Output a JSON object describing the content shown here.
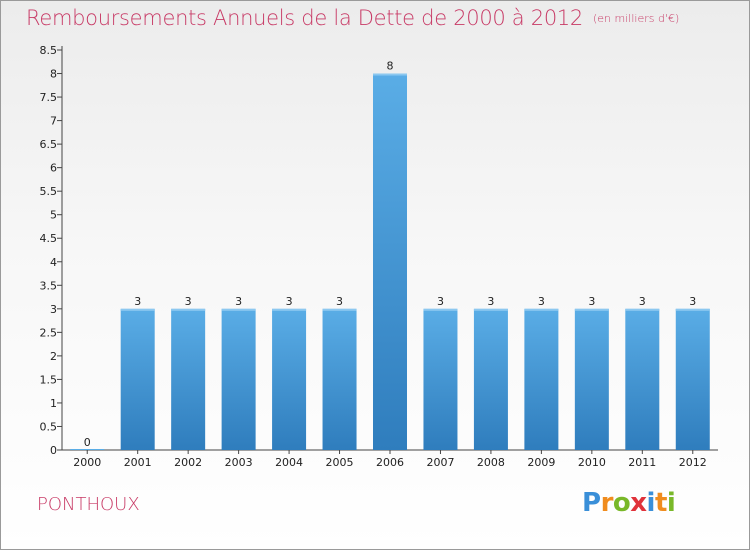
{
  "header": {
    "title": "Remboursements Annuels de la Dette de 2000 à 2012",
    "unit": "(en milliers d'€)"
  },
  "footer": {
    "place": "PONTHOUX",
    "brand_letters": [
      "P",
      "r",
      "o",
      "x",
      "i",
      "t",
      "i"
    ],
    "brand_colors": [
      "#3a8fd8",
      "#f08c1e",
      "#79b829",
      "#e0323a",
      "#3a8fd8",
      "#f08c1e",
      "#79b829"
    ]
  },
  "chart_data": {
    "type": "bar",
    "categories": [
      "2000",
      "2001",
      "2002",
      "2003",
      "2004",
      "2005",
      "2006",
      "2007",
      "2008",
      "2009",
      "2010",
      "2011",
      "2012"
    ],
    "values": [
      0,
      3,
      3,
      3,
      3,
      3,
      8,
      3,
      3,
      3,
      3,
      3,
      3
    ],
    "data_labels": [
      "0",
      "3",
      "3",
      "3",
      "3",
      "3",
      "8",
      "3",
      "3",
      "3",
      "3",
      "3",
      "3"
    ],
    "ylim": [
      0,
      8.5
    ],
    "y_ticks": [
      0,
      0.5,
      1,
      1.5,
      2,
      2.5,
      3,
      3.5,
      4,
      4.5,
      5,
      5.5,
      6,
      6.5,
      7,
      7.5,
      8,
      8.5
    ],
    "y_tick_labels": [
      "0",
      "0.5",
      "1",
      "1.5",
      "2",
      "2.5",
      "3",
      "3.5",
      "4",
      "4.5",
      "5",
      "5.5",
      "6",
      "6.5",
      "7",
      "7.5",
      "8",
      "8.5"
    ],
    "bar_color_top": "#5aade6",
    "bar_color_bottom": "#2f7dbd",
    "grid": false,
    "legend": "none"
  }
}
